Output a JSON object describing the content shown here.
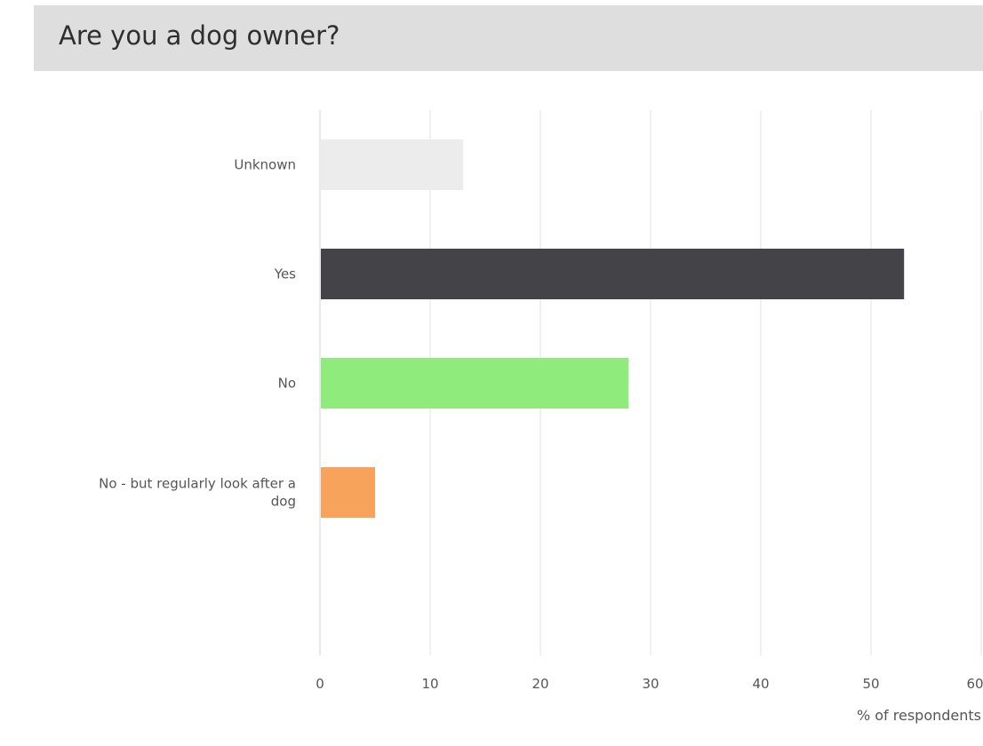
{
  "title": "Are you a dog owner?",
  "chart_data": {
    "type": "bar",
    "orientation": "horizontal",
    "categories": [
      "Unknown",
      "Yes",
      "No",
      "No - but regularly look after a dog"
    ],
    "values": [
      13,
      53,
      28,
      5
    ],
    "colors": [
      "#ececec",
      "#444448",
      "#8eeb7c",
      "#f7a35c"
    ],
    "xlabel": "% of respondents",
    "ylabel": "",
    "xlim": [
      0,
      60
    ],
    "xticks": [
      "0",
      "10",
      "20",
      "30",
      "40",
      "50",
      "60"
    ],
    "grid": "vertical"
  }
}
